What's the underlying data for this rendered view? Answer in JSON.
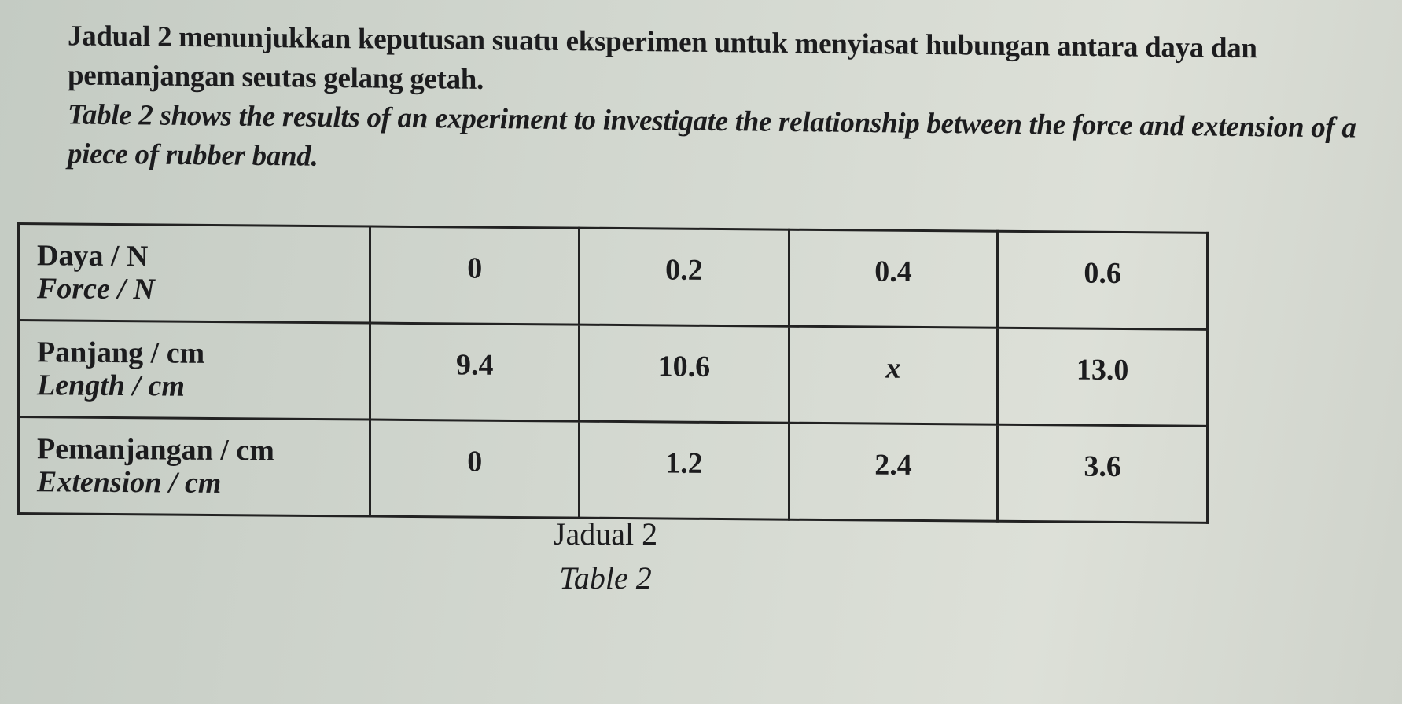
{
  "intro": {
    "malay": "Jadual 2 menunjukkan keputusan suatu eksperimen untuk menyiasat hubungan antara daya dan pemanjangan seutas gelang getah.",
    "english": "Table 2 shows the results of an experiment to investigate the relationship between the force and extension of a piece of rubber band."
  },
  "table": {
    "rows": [
      {
        "label_ms": "Daya / N",
        "label_en": "Force / N",
        "values": [
          "0",
          "0.2",
          "0.4",
          "0.6"
        ]
      },
      {
        "label_ms": "Panjang / cm",
        "label_en": "Length / cm",
        "values": [
          "9.4",
          "10.6",
          "x",
          "13.0"
        ]
      },
      {
        "label_ms": "Pemanjangan / cm",
        "label_en": "Extension / cm",
        "values": [
          "0",
          "1.2",
          "2.4",
          "3.6"
        ]
      }
    ]
  },
  "caption": {
    "malay": "Jadual 2",
    "english": "Table 2"
  }
}
